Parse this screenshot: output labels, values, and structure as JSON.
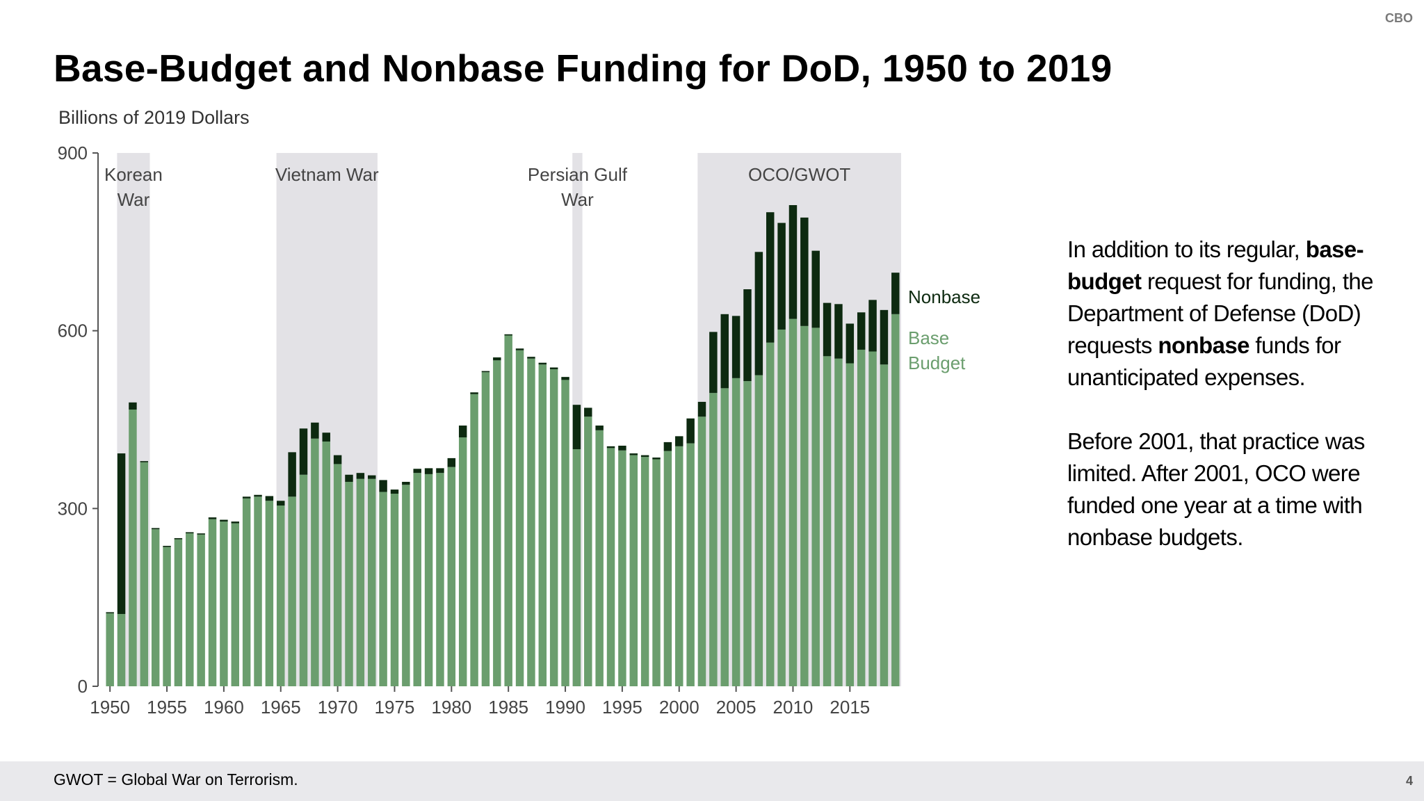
{
  "header": {
    "org": "CBO",
    "title": "Base-Budget and Nonbase Funding for DoD, 1950 to 2019"
  },
  "chart_data": {
    "type": "bar",
    "stacked": true,
    "ylabel": "Billions of 2019 Dollars",
    "ylim": [
      0,
      900
    ],
    "yticks": [
      0,
      300,
      600,
      900
    ],
    "xticks": [
      1950,
      1955,
      1960,
      1965,
      1970,
      1975,
      1980,
      1985,
      1990,
      1995,
      2000,
      2005,
      2010,
      2015
    ],
    "categories": [
      1950,
      1951,
      1952,
      1953,
      1954,
      1955,
      1956,
      1957,
      1958,
      1959,
      1960,
      1961,
      1962,
      1963,
      1964,
      1965,
      1966,
      1967,
      1968,
      1969,
      1970,
      1971,
      1972,
      1973,
      1974,
      1975,
      1976,
      1977,
      1978,
      1979,
      1980,
      1981,
      1982,
      1983,
      1984,
      1985,
      1986,
      1987,
      1988,
      1989,
      1990,
      1991,
      1992,
      1993,
      1994,
      1995,
      1996,
      1997,
      1998,
      1999,
      2000,
      2001,
      2002,
      2003,
      2004,
      2005,
      2006,
      2007,
      2008,
      2009,
      2010,
      2011,
      2012,
      2013,
      2014,
      2015,
      2016,
      2017,
      2018,
      2019
    ],
    "series": [
      {
        "name": "Base Budget",
        "color": "#6b9e6e",
        "values": [
          123,
          122,
          467,
          378,
          265,
          235,
          248,
          258,
          256,
          282,
          278,
          275,
          317,
          320,
          313,
          305,
          320,
          357,
          418,
          413,
          375,
          345,
          350,
          350,
          328,
          325,
          340,
          360,
          358,
          360,
          370,
          420,
          493,
          530,
          550,
          592,
          567,
          553,
          543,
          535,
          517,
          400,
          455,
          432,
          402,
          398,
          390,
          387,
          383,
          397,
          405,
          410,
          455,
          495,
          503,
          520,
          515,
          525,
          580,
          602,
          620,
          608,
          605,
          557,
          553,
          545,
          568,
          565,
          543,
          628
        ]
      },
      {
        "name": "Nonbase",
        "color": "#0d2a10",
        "values": [
          2,
          271,
          12,
          2,
          2,
          2,
          2,
          2,
          2,
          3,
          3,
          3,
          3,
          3,
          8,
          8,
          75,
          78,
          27,
          15,
          15,
          12,
          10,
          6,
          20,
          7,
          5,
          7,
          10,
          8,
          15,
          20,
          3,
          2,
          5,
          2,
          3,
          3,
          3,
          3,
          5,
          75,
          15,
          8,
          3,
          8,
          3,
          3,
          3,
          15,
          17,
          42,
          25,
          103,
          125,
          105,
          155,
          208,
          220,
          180,
          192,
          183,
          130,
          90,
          92,
          67,
          63,
          87,
          92,
          70
        ]
      }
    ],
    "shaded_periods": [
      {
        "label_lines": [
          "Korean",
          "War"
        ],
        "start": 1951,
        "end": 1953
      },
      {
        "label_lines": [
          "Vietnam War"
        ],
        "start": 1965,
        "end": 1973
      },
      {
        "label_lines": [
          "Persian Gulf",
          "War"
        ],
        "start": 1991,
        "end": 1991
      },
      {
        "label_lines": [
          "OCO/GWOT"
        ],
        "start": 2002,
        "end": 2019
      }
    ],
    "legend": {
      "position": "right",
      "nonbase_label": "Nonbase",
      "base_label_lines": [
        "Base",
        "Budget"
      ]
    }
  },
  "description": {
    "p1_before": "In addition to its regular, ",
    "p1_bold1": "base-budget",
    "p1_mid": " request for funding, the Department of Defense (DoD) requests ",
    "p1_bold2": "nonbase",
    "p1_after": " funds for unanticipated expenses.",
    "p2": "Before 2001, that practice was limited. After 2001, OCO were funded one year at a time with nonbase budgets."
  },
  "footer": {
    "footnote": "GWOT = Global War on Terrorism.",
    "page": "4"
  }
}
